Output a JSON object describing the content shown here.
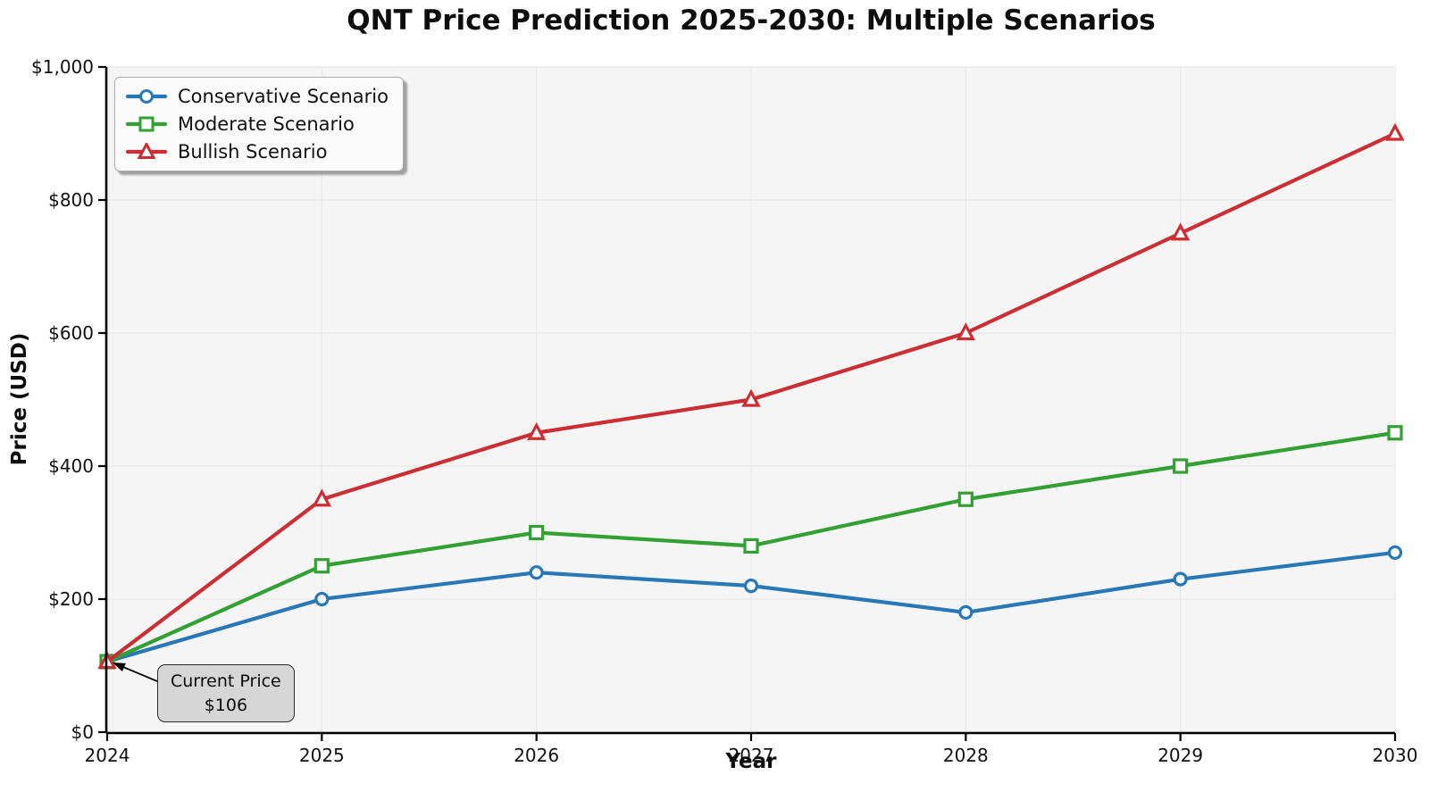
{
  "chart_data": {
    "type": "line",
    "title": "QNT Price Prediction 2025-2030: Multiple Scenarios",
    "xlabel": "Year",
    "ylabel": "Price (USD)",
    "x": [
      2024,
      2025,
      2026,
      2027,
      2028,
      2029,
      2030
    ],
    "x_tick_labels": [
      "2024",
      "2025",
      "2026",
      "2027",
      "2028",
      "2029",
      "2030"
    ],
    "y_ticks": [
      0,
      200,
      400,
      600,
      800,
      1000
    ],
    "y_tick_labels": [
      "$0",
      "$200",
      "$400",
      "$600",
      "$800",
      "$1,000"
    ],
    "xlim": [
      2024,
      2030
    ],
    "ylim": [
      0,
      1000
    ],
    "grid": true,
    "legend_position": "upper-left",
    "series": [
      {
        "name": "Conservative Scenario",
        "marker": "circle",
        "color": "#2878b8",
        "values": [
          106,
          200,
          240,
          220,
          180,
          230,
          270
        ]
      },
      {
        "name": "Moderate Scenario",
        "marker": "square",
        "color": "#32a032",
        "values": [
          106,
          250,
          300,
          280,
          350,
          400,
          450
        ]
      },
      {
        "name": "Bullish Scenario",
        "marker": "triangle",
        "color": "#cc2f33",
        "values": [
          106,
          350,
          450,
          500,
          600,
          750,
          900
        ]
      }
    ],
    "annotation": {
      "line1": "Current Price",
      "line2": "$106",
      "target_x": 2024,
      "target_y": 106
    },
    "colors": {
      "plot_bg": "#f5f5f5",
      "grid": "#e8e8e8",
      "axis": "#000000",
      "text": "#111111"
    }
  }
}
